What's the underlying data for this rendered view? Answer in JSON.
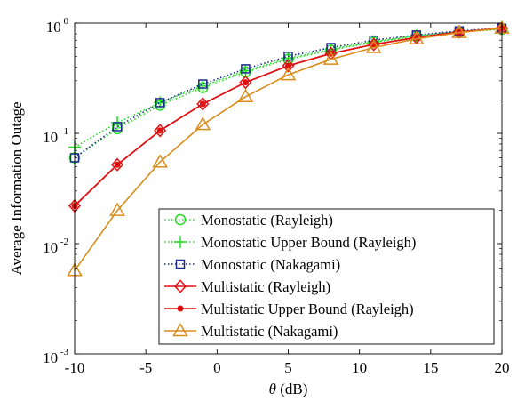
{
  "chart_data": {
    "type": "line",
    "xlabel": "θ (dB)",
    "xlabel_symbol": "θ",
    "xlabel_unit": " (dB)",
    "ylabel": "Average Information Outage",
    "xlim": [
      -10,
      20
    ],
    "ylim": [
      0.001,
      1
    ],
    "yscale": "log",
    "grid": false,
    "legend_position": "bottom-right",
    "x": [
      -10,
      -7,
      -4,
      -1,
      2,
      5,
      8,
      11,
      14,
      17,
      20
    ],
    "x_ticks": [
      "-10",
      "-5",
      "0",
      "5",
      "10",
      "15",
      "20"
    ],
    "y_ticks": [
      {
        "base": "10",
        "exp": "-3"
      },
      {
        "base": "10",
        "exp": "-2"
      },
      {
        "base": "10",
        "exp": "-1"
      },
      {
        "base": "10",
        "exp": "0"
      }
    ],
    "series": [
      {
        "name": "Monostatic (Rayleigh)",
        "color": "#22dd22",
        "line": "dotted",
        "marker": "circle",
        "values": [
          0.06,
          0.11,
          0.18,
          0.26,
          0.36,
          0.47,
          0.57,
          0.67,
          0.76,
          0.83,
          0.88
        ]
      },
      {
        "name": "Monostatic Upper Bound (Rayleigh)",
        "color": "#22dd22",
        "line": "dotted",
        "marker": "plus",
        "values": [
          0.075,
          0.125,
          0.19,
          0.27,
          0.37,
          0.48,
          0.58,
          0.68,
          0.77,
          0.84,
          0.89
        ]
      },
      {
        "name": "Monostatic (Nakagami)",
        "color": "#1a2a8c",
        "line": "dotted",
        "marker": "square",
        "values": [
          0.06,
          0.115,
          0.19,
          0.28,
          0.385,
          0.5,
          0.6,
          0.7,
          0.78,
          0.85,
          0.9
        ]
      },
      {
        "name": "Multistatic (Rayleigh)",
        "color": "#e01010",
        "line": "solid",
        "marker": "diamond",
        "values": [
          0.022,
          0.052,
          0.106,
          0.185,
          0.29,
          0.41,
          0.53,
          0.64,
          0.74,
          0.83,
          0.9
        ]
      },
      {
        "name": "Multistatic Upper Bound (Rayleigh)",
        "color": "#e01010",
        "line": "solid",
        "marker": "dot",
        "values": [
          0.022,
          0.052,
          0.106,
          0.185,
          0.29,
          0.41,
          0.53,
          0.64,
          0.74,
          0.83,
          0.9
        ]
      },
      {
        "name": "Multistatic (Nakagami)",
        "color": "#d98c1a",
        "line": "solid",
        "marker": "triangle",
        "values": [
          0.0057,
          0.02,
          0.055,
          0.12,
          0.215,
          0.34,
          0.47,
          0.6,
          0.72,
          0.82,
          0.9
        ]
      }
    ]
  }
}
